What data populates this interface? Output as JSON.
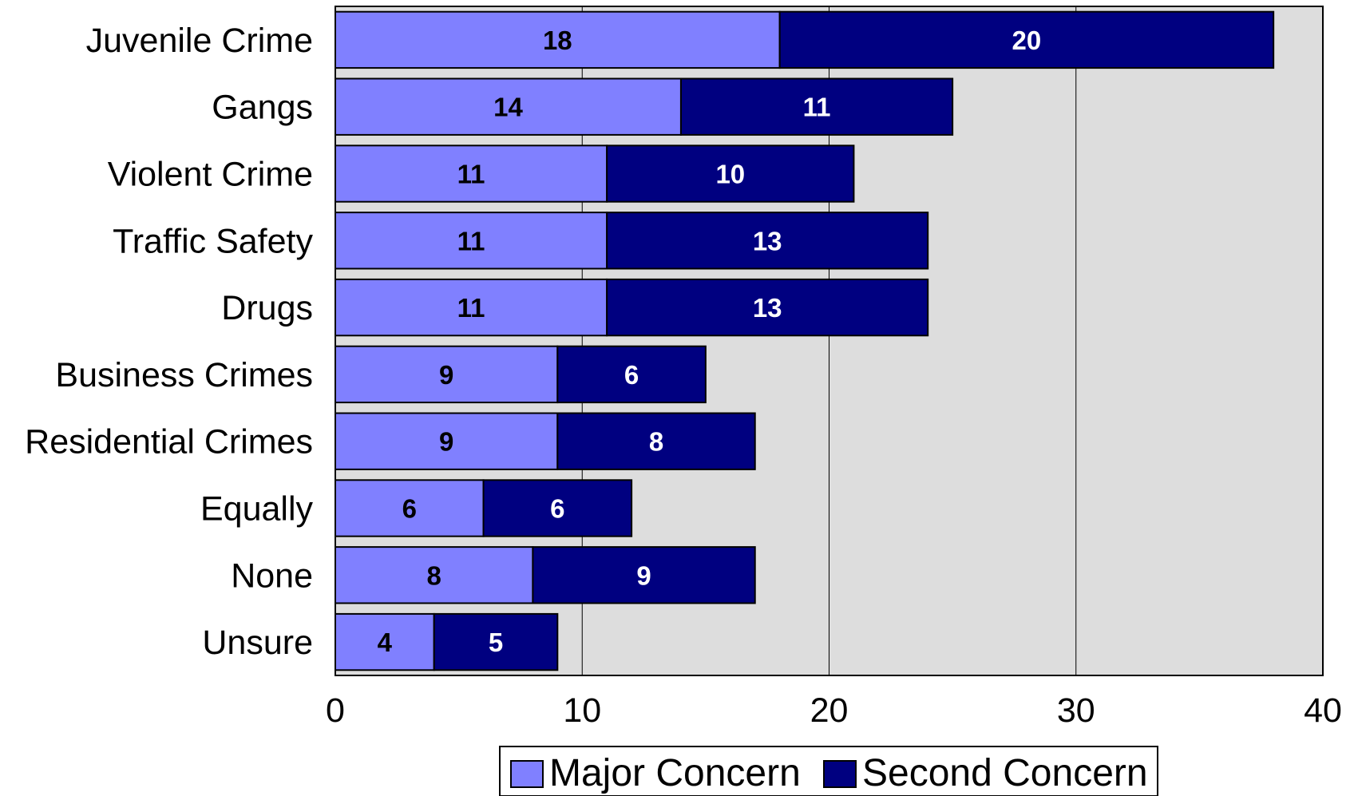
{
  "chart_data": {
    "type": "bar",
    "orientation": "horizontal",
    "stacked": true,
    "categories": [
      "Juvenile Crime",
      "Gangs",
      "Violent Crime",
      "Traffic Safety",
      "Drugs",
      "Business Crimes",
      "Residential Crimes",
      "Equally",
      "None",
      "Unsure"
    ],
    "series": [
      {
        "name": "Major Concern",
        "values": [
          18,
          14,
          11,
          11,
          11,
          9,
          9,
          6,
          8,
          4
        ],
        "color": "#8080ff",
        "label_color": "#000000"
      },
      {
        "name": "Second Concern",
        "values": [
          20,
          11,
          10,
          13,
          13,
          6,
          8,
          6,
          9,
          5
        ],
        "color": "#000080",
        "label_color": "#ffffff"
      }
    ],
    "xlim": [
      0,
      40
    ],
    "xticks": [
      0,
      10,
      20,
      30,
      40
    ],
    "grid": "vertical",
    "plot_background": "#dddddd",
    "legend_position": "bottom-center",
    "title": "",
    "xlabel": "",
    "ylabel": ""
  }
}
